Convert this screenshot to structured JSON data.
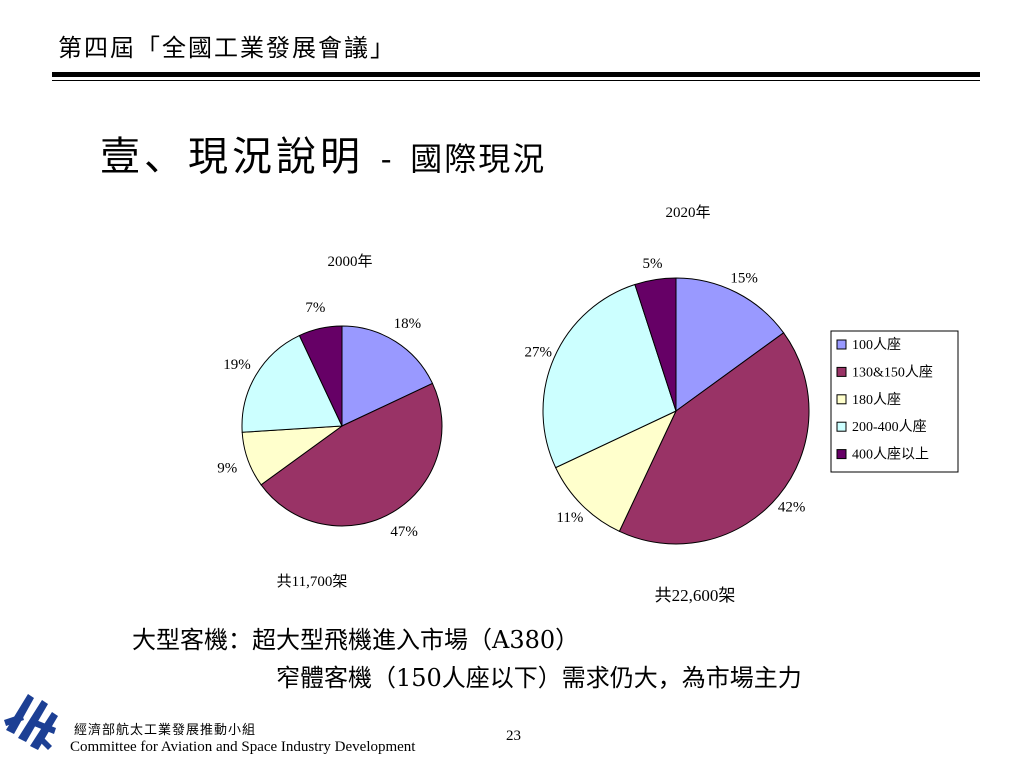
{
  "header": {
    "title": "第四屆「全國工業發展會議」"
  },
  "slide": {
    "title_main": "壹、現況說明",
    "title_sep": "-",
    "title_sub": "國際現況"
  },
  "colors": {
    "series": [
      "#9999ff",
      "#993366",
      "#ffffcc",
      "#ccffff",
      "#660066"
    ],
    "rule": "#000000"
  },
  "chart_data": [
    {
      "type": "pie",
      "title": "2000年",
      "categories": [
        "100人座",
        "130&150人座",
        "180人座",
        "200-400人座",
        "400人座以上"
      ],
      "values": [
        18,
        47,
        9,
        19,
        7
      ],
      "value_labels": [
        "18%",
        "47%",
        "9%",
        "19%",
        "7%"
      ],
      "caption": "共11,700架",
      "legend": "none"
    },
    {
      "type": "pie",
      "title": "2020年",
      "categories": [
        "100人座",
        "130&150人座",
        "180人座",
        "200-400人座",
        "400人座以上"
      ],
      "values": [
        15,
        42,
        11,
        27,
        5
      ],
      "value_labels": [
        "15%",
        "42%",
        "11%",
        "27%",
        "5%"
      ],
      "caption": "共22,600架",
      "legend": "right"
    }
  ],
  "notes": {
    "line1": "大型客機：超大型飛機進入市場（A380）",
    "line2": "窄體客機（150人座以下）需求仍大，為市場主力"
  },
  "footer": {
    "org": "經濟部航太工業發展推動小組",
    "org_en": "Committee for Aviation and Space Industry Development",
    "page": "23"
  },
  "logo": {
    "icon": "committee-logo-icon"
  }
}
